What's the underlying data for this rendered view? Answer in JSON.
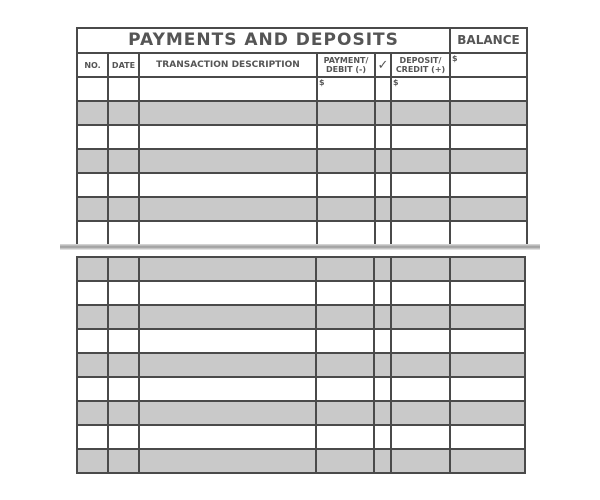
{
  "register": {
    "title": "PAYMENTS AND DEPOSITS",
    "balance_label": "BALANCE",
    "columns": {
      "no": "NO.",
      "date": "DATE",
      "description": "TRANSACTION DESCRIPTION",
      "payment": "PAYMENT/ DEBIT (-)",
      "check": "✓",
      "deposit": "DEPOSIT/ CREDIT (+)"
    },
    "currency_symbol": "$",
    "colors": {
      "shade": "#c9c9c9",
      "line": "#4a4a4a",
      "text": "#555555"
    }
  }
}
